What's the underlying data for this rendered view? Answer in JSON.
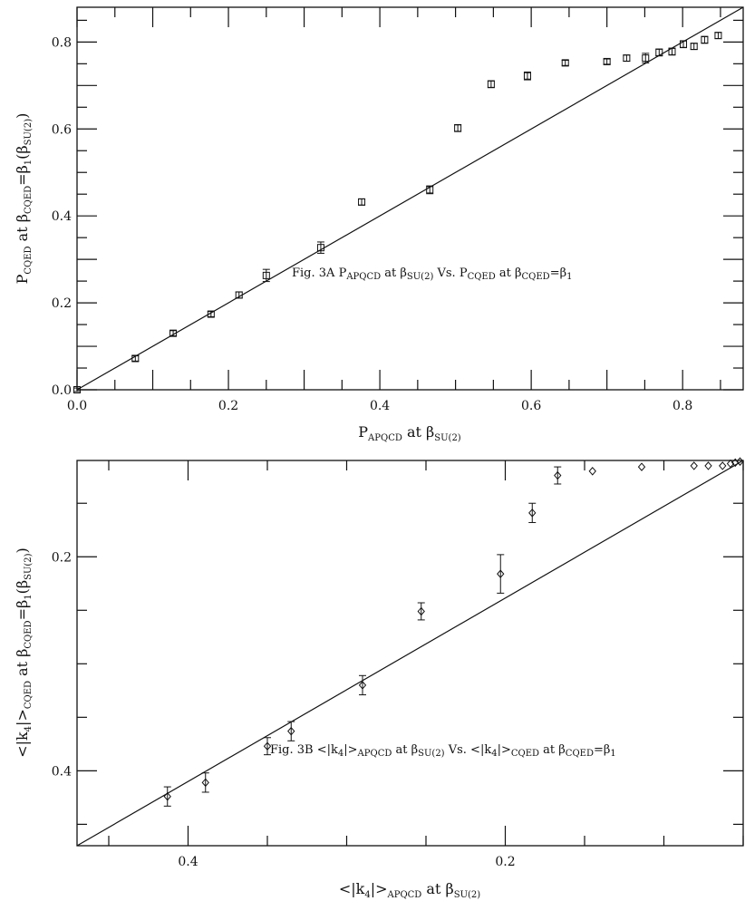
{
  "chart_data": [
    {
      "type": "scatter",
      "marker": "square",
      "xlim": [
        0,
        0.88
      ],
      "ylim": [
        0,
        0.88
      ],
      "x_ticks": [
        0.0,
        0.2,
        0.4,
        0.6,
        0.8
      ],
      "x_tick_labels": [
        "0.0",
        "0.2",
        "0.4",
        "0.6",
        "0.8"
      ],
      "y_ticks": [
        0.0,
        0.2,
        0.4,
        0.6,
        0.8
      ],
      "y_tick_labels": [
        "0.0",
        "0.2",
        "0.4",
        "0.6",
        "0.8"
      ],
      "xlabel": {
        "main": "P",
        "sub": "APQCD",
        "rest": " at β",
        "sub2": "SU(2)"
      },
      "ylabel": {
        "main": "P",
        "sub": "CQED",
        "rest": " at  β",
        "sub2": "CQED",
        "rest2": "=β",
        "sub3": "1",
        "rest3": "(β",
        "sub4": "SU(2)",
        "rest4": ")"
      },
      "annotation": {
        "fig": "Fig. 3A  ",
        "t1": "P",
        "s1": "APQCD",
        "t2": " at β",
        "s2": "SU(2)",
        "t3": " Vs. P",
        "s3": "CQED",
        "t4": " at β",
        "s4": "CQED",
        "t5": "=β",
        "s5": "1"
      },
      "reference_line": {
        "x": [
          0,
          0.88
        ],
        "y": [
          0,
          0.88
        ]
      },
      "points": [
        {
          "x": 0.0,
          "y": 0.0,
          "err": 0.004
        },
        {
          "x": 0.077,
          "y": 0.072,
          "err": 0.006
        },
        {
          "x": 0.127,
          "y": 0.13,
          "err": 0.006
        },
        {
          "x": 0.177,
          "y": 0.174,
          "err": 0.006
        },
        {
          "x": 0.214,
          "y": 0.218,
          "err": 0.007
        },
        {
          "x": 0.25,
          "y": 0.263,
          "err": 0.014
        },
        {
          "x": 0.322,
          "y": 0.327,
          "err": 0.013
        },
        {
          "x": 0.376,
          "y": 0.432,
          "err": 0.007
        },
        {
          "x": 0.466,
          "y": 0.46,
          "err": 0.009
        },
        {
          "x": 0.503,
          "y": 0.602,
          "err": 0.008
        },
        {
          "x": 0.547,
          "y": 0.703,
          "err": 0.008
        },
        {
          "x": 0.595,
          "y": 0.722,
          "err": 0.009
        },
        {
          "x": 0.645,
          "y": 0.752,
          "err": 0.006
        },
        {
          "x": 0.7,
          "y": 0.755,
          "err": 0.006
        },
        {
          "x": 0.726,
          "y": 0.763,
          "err": 0.007
        },
        {
          "x": 0.751,
          "y": 0.763,
          "err": 0.011
        },
        {
          "x": 0.769,
          "y": 0.776,
          "err": 0.008
        },
        {
          "x": 0.786,
          "y": 0.778,
          "err": 0.008
        },
        {
          "x": 0.801,
          "y": 0.795,
          "err": 0.008
        },
        {
          "x": 0.815,
          "y": 0.79,
          "err": 0.007
        },
        {
          "x": 0.829,
          "y": 0.805,
          "err": 0.008
        },
        {
          "x": 0.847,
          "y": 0.815,
          "err": 0.007
        }
      ]
    },
    {
      "type": "scatter",
      "marker": "diamond",
      "x_reversed": true,
      "y_reversed": true,
      "xlim": [
        0.05,
        0.47
      ],
      "ylim": [
        0.11,
        0.47
      ],
      "x_ticks": [
        0.4,
        0.2
      ],
      "x_tick_labels": [
        "0.4",
        "0.2"
      ],
      "y_ticks": [
        0.2,
        0.4
      ],
      "y_tick_labels": [
        "0.2",
        "0.4"
      ],
      "xlabel": {
        "main": "<|k",
        "sub": "4",
        "rest": "|>",
        "sub2": "APQCD",
        "rest2": " at β",
        "sub3": "SU(2)"
      },
      "ylabel": {
        "main": "<|k",
        "sub": "4",
        "rest": "|>",
        "sub2": "CQED",
        "rest2": " at  β",
        "sub3": "CQED",
        "rest3": "=β",
        "sub4": "1",
        "rest4": "(β",
        "sub5": "SU(2)",
        "rest5": ")"
      },
      "annotation": {
        "fig": "Fig. 3B   ",
        "t1": "<|k",
        "s1": "4",
        "t2": "|>",
        "s2": "APQCD",
        "t3": " at β",
        "s3": "SU(2)",
        "t4": " Vs. <|k",
        "s4": "4",
        "t5": "|>",
        "s5": "CQED",
        "t6": " at β",
        "s6": "CQED",
        "t7": "=β",
        "s7": "1"
      },
      "reference_line": {
        "x": [
          0.47,
          0.05
        ],
        "y": [
          0.47,
          0.11
        ]
      },
      "points": [
        {
          "x": 0.413,
          "y": 0.424,
          "err": 0.009
        },
        {
          "x": 0.389,
          "y": 0.411,
          "err": 0.009
        },
        {
          "x": 0.35,
          "y": 0.377,
          "err": 0.008
        },
        {
          "x": 0.335,
          "y": 0.363,
          "err": 0.009
        },
        {
          "x": 0.29,
          "y": 0.32,
          "err": 0.009
        },
        {
          "x": 0.253,
          "y": 0.251,
          "err": 0.008
        },
        {
          "x": 0.203,
          "y": 0.216,
          "err": 0.018
        },
        {
          "x": 0.183,
          "y": 0.159,
          "err": 0.009
        },
        {
          "x": 0.167,
          "y": 0.124,
          "err": 0.008
        },
        {
          "x": 0.145,
          "y": 0.12,
          "err": 0.0
        },
        {
          "x": 0.114,
          "y": 0.116,
          "err": 0.0
        },
        {
          "x": 0.081,
          "y": 0.115,
          "err": 0.0
        },
        {
          "x": 0.072,
          "y": 0.115,
          "err": 0.0
        },
        {
          "x": 0.063,
          "y": 0.115,
          "err": 0.0
        },
        {
          "x": 0.058,
          "y": 0.113,
          "err": 0.0
        },
        {
          "x": 0.055,
          "y": 0.112,
          "err": 0.0
        },
        {
          "x": 0.052,
          "y": 0.111,
          "err": 0.0
        }
      ]
    }
  ]
}
